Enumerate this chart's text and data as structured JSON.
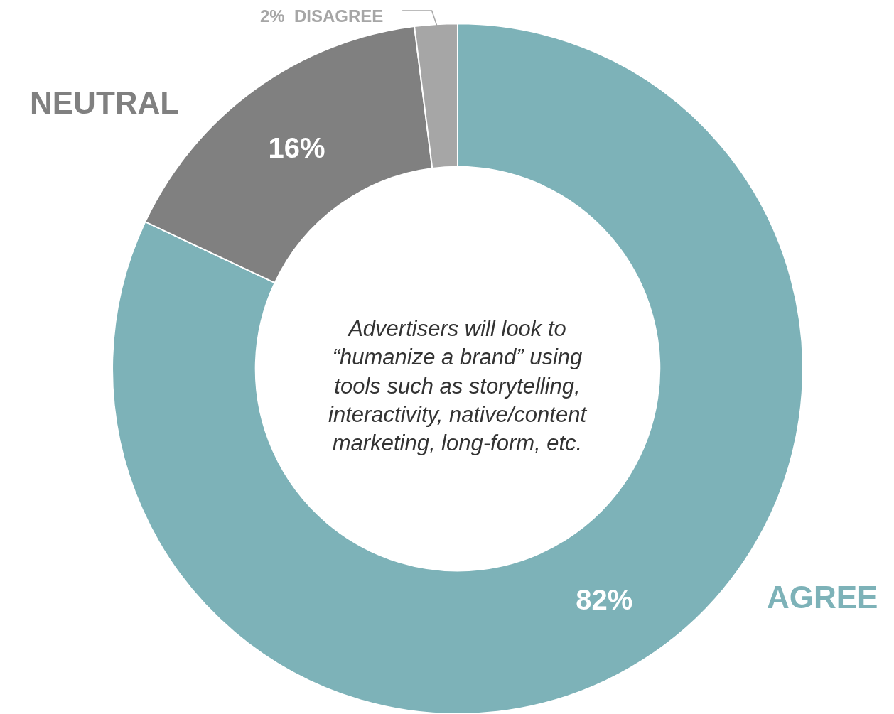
{
  "chart_data": {
    "type": "donut",
    "categories": [
      "AGREE",
      "NEUTRAL",
      "DISAGREE"
    ],
    "values": [
      82,
      16,
      2
    ],
    "colors": [
      "#7db2b8",
      "#808080",
      "#a6a6a6"
    ],
    "value_labels": [
      "82%",
      "16%",
      "2%"
    ],
    "annotations": [
      "Advertisers will look to “humanize a brand” using tools such as storytelling, interactivity, native/content marketing, long-form, etc."
    ],
    "legend": false
  }
}
